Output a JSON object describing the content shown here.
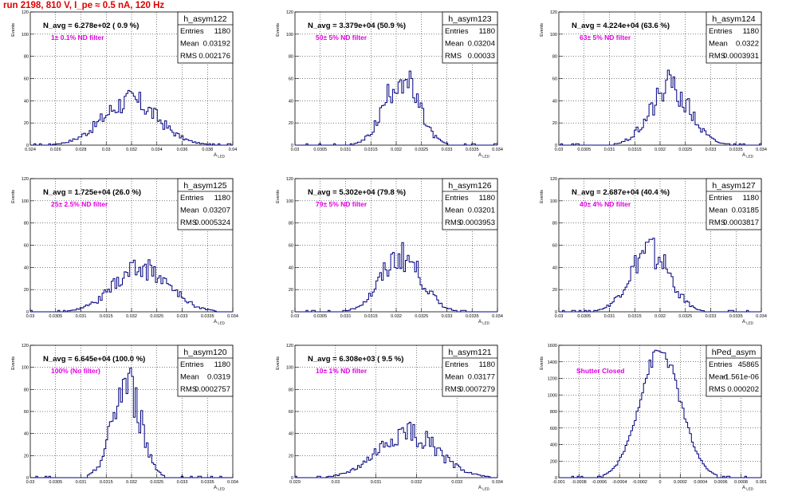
{
  "header": {
    "run_title": "run 2198,   810 V, I_pe ≈ 0.5 nA, 120 Hz"
  },
  "colors": {
    "hist": "#000080",
    "annotation": "#e000e0",
    "title": "#e00000",
    "grid": "#000000"
  },
  "stats_labels": {
    "entries": "Entries",
    "mean": "Mean",
    "rms": "RMS"
  },
  "chart_data": [
    {
      "type": "histogram",
      "name": "h_asym122",
      "ylabel": "Events",
      "xlabel": "A_LED",
      "xunit_label": "A",
      "xlim": [
        0.024,
        0.04
      ],
      "ylim": [
        0,
        120
      ],
      "xticks": [
        "0.024",
        "0.026",
        "0.028",
        "0.03",
        "0.032",
        "0.034",
        "0.036",
        "0.038",
        "0.04"
      ],
      "yticks": [
        "0",
        "20",
        "40",
        "60",
        "80",
        "100",
        "120"
      ],
      "navg": "N_avg = 6.278e+02 ( 0.9 %)",
      "annotation": "1± 0.1% ND filter",
      "stats": {
        "entries": "1180",
        "mean": "0.03192",
        "rms": "0.002176"
      },
      "mean": 0.03192,
      "sigma": 0.002176,
      "peak": 40,
      "peak_x": 0.0319
    },
    {
      "type": "histogram",
      "name": "h_asym123",
      "ylabel": "Events",
      "xlabel": "A_LED",
      "xunit_label": "A",
      "xlim": [
        0.03,
        0.034
      ],
      "ylim": [
        0,
        120
      ],
      "xticks": [
        "0.03",
        "0.0305",
        "0.031",
        "0.0315",
        "0.032",
        "0.0325",
        "0.033",
        "0.0335",
        "0.034"
      ],
      "yticks": [
        "0",
        "20",
        "40",
        "60",
        "80",
        "100",
        "120"
      ],
      "navg": "N_avg = 3.379e+04 (50.9 %)",
      "annotation": "50± 5% ND filter",
      "stats": {
        "entries": "1180",
        "mean": "0.03204",
        "rms": "0.00033"
      },
      "mean": 0.03204,
      "sigma": 0.00033,
      "peak": 60,
      "peak_x": 0.0321
    },
    {
      "type": "histogram",
      "name": "h_asym124",
      "ylabel": "Events",
      "xlabel": "A_LED",
      "xunit_label": "A",
      "xlim": [
        0.03,
        0.034
      ],
      "ylim": [
        0,
        120
      ],
      "xticks": [
        "0.03",
        "0.0305",
        "0.031",
        "0.0315",
        "0.032",
        "0.0325",
        "0.033",
        "0.0335",
        "0.034"
      ],
      "yticks": [
        "0",
        "20",
        "40",
        "60",
        "80",
        "100",
        "120"
      ],
      "navg": "N_avg = 4.224e+04 (63.6 %)",
      "annotation": "63± 5% ND filter",
      "stats": {
        "entries": "1180",
        "mean": "0.0322",
        "rms": "0.0003931"
      },
      "mean": 0.0322,
      "sigma": 0.0003931,
      "peak": 53,
      "peak_x": 0.0322
    },
    {
      "type": "histogram",
      "name": "h_asym125",
      "ylabel": "Events",
      "xlabel": "A_LED",
      "xunit_label": "A",
      "xlim": [
        0.03,
        0.034
      ],
      "ylim": [
        0,
        120
      ],
      "xticks": [
        "0.03",
        "0.0305",
        "0.031",
        "0.0315",
        "0.032",
        "0.0325",
        "0.033",
        "0.0335",
        "0.034"
      ],
      "yticks": [
        "0",
        "20",
        "40",
        "60",
        "80",
        "100",
        "120"
      ],
      "navg": "N_avg = 1.725e+04 (26.0 %)",
      "annotation": "25± 2.5% ND filter",
      "stats": {
        "entries": "1180",
        "mean": "0.03207",
        "rms": "0.0005324"
      },
      "mean": 0.03207,
      "sigma": 0.0005324,
      "peak": 40,
      "peak_x": 0.0322
    },
    {
      "type": "histogram",
      "name": "h_asym126",
      "ylabel": "Events",
      "xlabel": "A_LED",
      "xunit_label": "A",
      "xlim": [
        0.03,
        0.034
      ],
      "ylim": [
        0,
        120
      ],
      "xticks": [
        "0.03",
        "0.0305",
        "0.031",
        "0.0315",
        "0.032",
        "0.0325",
        "0.033",
        "0.0335",
        "0.034"
      ],
      "yticks": [
        "0",
        "20",
        "40",
        "60",
        "80",
        "100",
        "120"
      ],
      "navg": "N_avg = 5.302e+04 (79.8 %)",
      "annotation": "79± 5% ND filter",
      "stats": {
        "entries": "1180",
        "mean": "0.03201",
        "rms": "0.0003953"
      },
      "mean": 0.03201,
      "sigma": 0.0003953,
      "peak": 50,
      "peak_x": 0.0321
    },
    {
      "type": "histogram",
      "name": "h_asym127",
      "ylabel": "Events",
      "xlabel": "A_LED",
      "xunit_label": "A",
      "xlim": [
        0.03,
        0.034
      ],
      "ylim": [
        0,
        120
      ],
      "xticks": [
        "0.03",
        "0.0305",
        "0.031",
        "0.0315",
        "0.032",
        "0.0325",
        "0.033",
        "0.0335",
        "0.034"
      ],
      "yticks": [
        "0",
        "20",
        "40",
        "60",
        "80",
        "100",
        "120"
      ],
      "navg": "N_avg = 2.687e+04 (40.4 %)",
      "annotation": "40± 4% ND filter",
      "stats": {
        "entries": "1180",
        "mean": "0.03185",
        "rms": "0.0003817"
      },
      "mean": 0.03185,
      "sigma": 0.0003817,
      "peak": 54,
      "peak_x": 0.0318
    },
    {
      "type": "histogram",
      "name": "h_asym120",
      "ylabel": "Events",
      "xlabel": "A_LED",
      "xunit_label": "A",
      "xlim": [
        0.03,
        0.034
      ],
      "ylim": [
        0,
        120
      ],
      "xticks": [
        "0.03",
        "0.0305",
        "0.031",
        "0.0315",
        "0.032",
        "0.0325",
        "0.033",
        "0.0335",
        "0.034"
      ],
      "yticks": [
        "0",
        "20",
        "40",
        "60",
        "80",
        "100",
        "120"
      ],
      "navg": "N_avg = 6.645e+04 (100.0 %)",
      "annotation": "100% (No filter)",
      "stats": {
        "entries": "1180",
        "mean": "0.0319",
        "rms": "0.0002757"
      },
      "mean": 0.0319,
      "sigma": 0.0002757,
      "peak": 86,
      "peak_x": 0.0319
    },
    {
      "type": "histogram",
      "name": "h_asym121",
      "ylabel": "Events",
      "xlabel": "A_LED",
      "xunit_label": "A",
      "xlim": [
        0.029,
        0.034
      ],
      "ylim": [
        0,
        120
      ],
      "xticks": [
        "0.029",
        "0.03",
        "0.031",
        "0.032",
        "0.033",
        "0.034"
      ],
      "yticks": [
        "0",
        "20",
        "40",
        "60",
        "80",
        "100",
        "120"
      ],
      "navg": "N_avg = 6.308e+03 ( 9.5 %)",
      "annotation": "10± 1% ND filter",
      "stats": {
        "entries": "1180",
        "mean": "0.03177",
        "rms": "0.0007279"
      },
      "mean": 0.03177,
      "sigma": 0.0007279,
      "peak": 40,
      "peak_x": 0.0318
    },
    {
      "type": "histogram",
      "name": "hPed_asym",
      "ylabel": "Events",
      "xlabel": "A_LED",
      "xunit_label": "A",
      "xlim": [
        -0.001,
        0.001
      ],
      "ylim": [
        0,
        1700
      ],
      "xticks": [
        "-0.001",
        "-0.0008",
        "-0.0006",
        "-0.0004",
        "-0.0002",
        "0",
        "0.0002",
        "0.0004",
        "0.0006",
        "0.0008",
        "0.001"
      ],
      "yticks": [
        "0",
        "200",
        "400",
        "600",
        "800",
        "1000",
        "1200",
        "1400",
        "1600"
      ],
      "navg": "",
      "annotation": "Shutter Closed",
      "stats": {
        "entries": "45865",
        "mean": "-1.561e-06",
        "rms": "0.000202"
      },
      "mean": -1.6e-06,
      "sigma": 0.000202,
      "peak": 1620,
      "peak_x": 0.0
    }
  ]
}
